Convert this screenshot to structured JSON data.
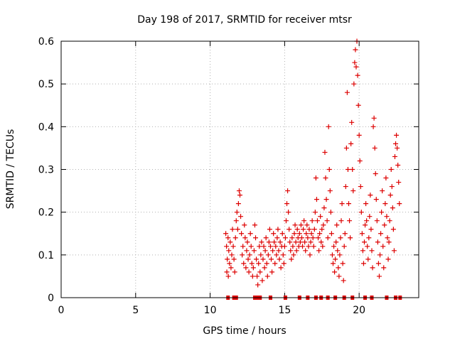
{
  "chart_data": {
    "type": "scatter",
    "title": "Day 198 of 2017, SRMTID for receiver mtsr",
    "xlabel": "GPS time / hours",
    "ylabel": "SRMTID / TECUs",
    "xlim": [
      0,
      24
    ],
    "ylim": [
      0,
      0.6
    ],
    "xticks": [
      0,
      5,
      10,
      15,
      20
    ],
    "xtick_labels": [
      "0",
      "5",
      "10",
      "15",
      "20"
    ],
    "yticks": [
      0,
      0.1,
      0.2,
      0.3,
      0.4,
      0.5,
      0.6
    ],
    "ytick_labels": [
      "0",
      "0.1",
      "0.2",
      "0.3",
      "0.4",
      "0.5",
      "0.6"
    ],
    "grid": true,
    "legend": "none",
    "marker": "+",
    "color": "#dd0000",
    "series": [
      {
        "name": "SRMTID",
        "points": [
          [
            11.05,
            0.15
          ],
          [
            11.1,
            0.12
          ],
          [
            11.12,
            0.06
          ],
          [
            11.15,
            0.09
          ],
          [
            11.2,
            0.14
          ],
          [
            11.22,
            0.05
          ],
          [
            11.25,
            0.11
          ],
          [
            11.3,
            0.08
          ],
          [
            11.35,
            0.13
          ],
          [
            11.4,
            0.07
          ],
          [
            11.45,
            0.1
          ],
          [
            11.5,
            0.16
          ],
          [
            11.55,
            0.12
          ],
          [
            11.6,
            0.09
          ],
          [
            11.65,
            0.06
          ],
          [
            11.7,
            0.14
          ],
          [
            11.75,
            0.18
          ],
          [
            11.8,
            0.2
          ],
          [
            11.85,
            0.16
          ],
          [
            11.9,
            0.22
          ],
          [
            11.95,
            0.25
          ],
          [
            12.0,
            0.24
          ],
          [
            12.05,
            0.19
          ],
          [
            12.1,
            0.15
          ],
          [
            12.15,
            0.1
          ],
          [
            12.2,
            0.12
          ],
          [
            12.25,
            0.08
          ],
          [
            12.3,
            0.17
          ],
          [
            12.35,
            0.14
          ],
          [
            12.4,
            0.07
          ],
          [
            12.45,
            0.11
          ],
          [
            12.5,
            0.13
          ],
          [
            12.55,
            0.09
          ],
          [
            12.6,
            0.06
          ],
          [
            12.65,
            0.1
          ],
          [
            12.7,
            0.15
          ],
          [
            12.75,
            0.12
          ],
          [
            12.8,
            0.08
          ],
          [
            12.85,
            0.05
          ],
          [
            12.9,
            0.07
          ],
          [
            12.95,
            0.11
          ],
          [
            13.0,
            0.17
          ],
          [
            13.05,
            0.14
          ],
          [
            13.1,
            0.09
          ],
          [
            13.15,
            0.05
          ],
          [
            13.2,
            0.03
          ],
          [
            13.25,
            0.08
          ],
          [
            13.3,
            0.12
          ],
          [
            13.35,
            0.06
          ],
          [
            13.4,
            0.1
          ],
          [
            13.45,
            0.13
          ],
          [
            13.5,
            0.04
          ],
          [
            13.55,
            0.09
          ],
          [
            13.6,
            0.12
          ],
          [
            13.65,
            0.07
          ],
          [
            13.7,
            0.11
          ],
          [
            13.75,
            0.14
          ],
          [
            13.8,
            0.08
          ],
          [
            13.85,
            0.05
          ],
          [
            13.9,
            0.1
          ],
          [
            13.95,
            0.13
          ],
          [
            14.0,
            0.16
          ],
          [
            14.05,
            0.12
          ],
          [
            14.1,
            0.09
          ],
          [
            14.15,
            0.06
          ],
          [
            14.2,
            0.11
          ],
          [
            14.25,
            0.15
          ],
          [
            14.3,
            0.13
          ],
          [
            14.35,
            0.08
          ],
          [
            14.4,
            0.12
          ],
          [
            14.45,
            0.1
          ],
          [
            14.5,
            0.14
          ],
          [
            14.55,
            0.16
          ],
          [
            14.6,
            0.11
          ],
          [
            14.65,
            0.09
          ],
          [
            14.7,
            0.13
          ],
          [
            14.75,
            0.07
          ],
          [
            14.8,
            0.12
          ],
          [
            14.85,
            0.15
          ],
          [
            14.9,
            0.1
          ],
          [
            14.95,
            0.08
          ],
          [
            15.0,
            0.12
          ],
          [
            15.05,
            0.14
          ],
          [
            15.1,
            0.18
          ],
          [
            15.15,
            0.22
          ],
          [
            15.2,
            0.25
          ],
          [
            15.25,
            0.2
          ],
          [
            15.3,
            0.16
          ],
          [
            15.35,
            0.13
          ],
          [
            15.4,
            0.11
          ],
          [
            15.45,
            0.09
          ],
          [
            15.5,
            0.14
          ],
          [
            15.55,
            0.12
          ],
          [
            15.6,
            0.1
          ],
          [
            15.65,
            0.15
          ],
          [
            15.7,
            0.17
          ],
          [
            15.75,
            0.13
          ],
          [
            15.8,
            0.11
          ],
          [
            15.85,
            0.16
          ],
          [
            15.9,
            0.14
          ],
          [
            15.95,
            0.12
          ],
          [
            16.0,
            0.15
          ],
          [
            16.05,
            0.13
          ],
          [
            16.1,
            0.17
          ],
          [
            16.15,
            0.14
          ],
          [
            16.2,
            0.12
          ],
          [
            16.25,
            0.16
          ],
          [
            16.3,
            0.18
          ],
          [
            16.35,
            0.13
          ],
          [
            16.4,
            0.11
          ],
          [
            16.45,
            0.15
          ],
          [
            16.5,
            0.17
          ],
          [
            16.55,
            0.14
          ],
          [
            16.6,
            0.12
          ],
          [
            16.65,
            0.16
          ],
          [
            16.7,
            0.1
          ],
          [
            16.75,
            0.13
          ],
          [
            16.8,
            0.15
          ],
          [
            16.85,
            0.18
          ],
          [
            16.9,
            0.14
          ],
          [
            16.95,
            0.12
          ],
          [
            17.0,
            0.16
          ],
          [
            17.05,
            0.2
          ],
          [
            17.1,
            0.28
          ],
          [
            17.15,
            0.23
          ],
          [
            17.2,
            0.18
          ],
          [
            17.25,
            0.14
          ],
          [
            17.3,
            0.11
          ],
          [
            17.35,
            0.15
          ],
          [
            17.4,
            0.19
          ],
          [
            17.45,
            0.13
          ],
          [
            17.5,
            0.16
          ],
          [
            17.55,
            0.12
          ],
          [
            17.6,
            0.17
          ],
          [
            17.65,
            0.21
          ],
          [
            17.7,
            0.34
          ],
          [
            17.75,
            0.28
          ],
          [
            17.8,
            0.23
          ],
          [
            17.85,
            0.18
          ],
          [
            17.9,
            0.14
          ],
          [
            17.95,
            0.4
          ],
          [
            18.0,
            0.3
          ],
          [
            18.05,
            0.25
          ],
          [
            18.1,
            0.2
          ],
          [
            18.15,
            0.15
          ],
          [
            18.2,
            0.1
          ],
          [
            18.25,
            0.08
          ],
          [
            18.3,
            0.12
          ],
          [
            18.35,
            0.06
          ],
          [
            18.4,
            0.09
          ],
          [
            18.45,
            0.13
          ],
          [
            18.5,
            0.17
          ],
          [
            18.55,
            0.11
          ],
          [
            18.6,
            0.07
          ],
          [
            18.65,
            0.05
          ],
          [
            18.7,
            0.1
          ],
          [
            18.75,
            0.14
          ],
          [
            18.8,
            0.18
          ],
          [
            18.85,
            0.22
          ],
          [
            18.9,
            0.08
          ],
          [
            18.95,
            0.04
          ],
          [
            19.0,
            0.12
          ],
          [
            19.05,
            0.15
          ],
          [
            19.1,
            0.26
          ],
          [
            19.15,
            0.35
          ],
          [
            19.2,
            0.48
          ],
          [
            19.25,
            0.3
          ],
          [
            19.3,
            0.22
          ],
          [
            19.35,
            0.18
          ],
          [
            19.4,
            0.14
          ],
          [
            19.45,
            0.36
          ],
          [
            19.5,
            0.41
          ],
          [
            19.55,
            0.3
          ],
          [
            19.6,
            0.25
          ],
          [
            19.65,
            0.5
          ],
          [
            19.7,
            0.55
          ],
          [
            19.75,
            0.58
          ],
          [
            19.8,
            0.54
          ],
          [
            19.85,
            0.6
          ],
          [
            19.9,
            0.52
          ],
          [
            19.95,
            0.45
          ],
          [
            20.0,
            0.38
          ],
          [
            20.05,
            0.32
          ],
          [
            20.1,
            0.26
          ],
          [
            20.15,
            0.2
          ],
          [
            20.2,
            0.15
          ],
          [
            20.25,
            0.11
          ],
          [
            20.3,
            0.08
          ],
          [
            20.35,
            0.13
          ],
          [
            20.4,
            0.17
          ],
          [
            20.45,
            0.22
          ],
          [
            20.5,
            0.18
          ],
          [
            20.55,
            0.12
          ],
          [
            20.6,
            0.09
          ],
          [
            20.65,
            0.14
          ],
          [
            20.7,
            0.19
          ],
          [
            20.75,
            0.24
          ],
          [
            20.8,
            0.16
          ],
          [
            20.85,
            0.11
          ],
          [
            20.9,
            0.07
          ],
          [
            20.95,
            0.4
          ],
          [
            21.0,
            0.42
          ],
          [
            21.05,
            0.35
          ],
          [
            21.1,
            0.29
          ],
          [
            21.15,
            0.23
          ],
          [
            21.2,
            0.18
          ],
          [
            21.25,
            0.13
          ],
          [
            21.3,
            0.08
          ],
          [
            21.35,
            0.05
          ],
          [
            21.4,
            0.1
          ],
          [
            21.45,
            0.15
          ],
          [
            21.5,
            0.2
          ],
          [
            21.55,
            0.25
          ],
          [
            21.6,
            0.12
          ],
          [
            21.65,
            0.07
          ],
          [
            21.7,
            0.17
          ],
          [
            21.75,
            0.22
          ],
          [
            21.8,
            0.28
          ],
          [
            21.85,
            0.19
          ],
          [
            21.9,
            0.14
          ],
          [
            21.95,
            0.09
          ],
          [
            22.0,
            0.13
          ],
          [
            22.05,
            0.18
          ],
          [
            22.1,
            0.24
          ],
          [
            22.15,
            0.3
          ],
          [
            22.2,
            0.26
          ],
          [
            22.25,
            0.21
          ],
          [
            22.3,
            0.16
          ],
          [
            22.35,
            0.11
          ],
          [
            22.4,
            0.33
          ],
          [
            22.45,
            0.36
          ],
          [
            22.5,
            0.38
          ],
          [
            22.55,
            0.35
          ],
          [
            22.6,
            0.31
          ],
          [
            22.65,
            0.27
          ],
          [
            22.7,
            0.22
          ]
        ]
      }
    ],
    "zero_markers_x": [
      11.2,
      11.6,
      11.75,
      13.0,
      13.15,
      13.35,
      14.05,
      15.05,
      16.0,
      16.55,
      17.1,
      17.45,
      17.9,
      18.4,
      19.0,
      19.55,
      20.4,
      20.85,
      21.85,
      22.45,
      22.75
    ]
  }
}
